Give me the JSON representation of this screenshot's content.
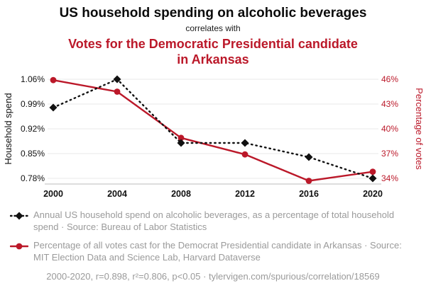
{
  "header": {
    "title": "US household spending on alcoholic beverages",
    "connector": "correlates with",
    "subtitle": "Votes for the Democratic Presidential candidate in Arkansas"
  },
  "colors": {
    "accent_red": "#bb1829",
    "series_black": "#111111",
    "grid": "#e8e8e8",
    "axis_line": "#bbbbbb",
    "legend_gray": "#9a9a9a"
  },
  "chart_data": {
    "type": "line",
    "x": [
      2000,
      2004,
      2008,
      2012,
      2016,
      2020
    ],
    "x_tick_labels": [
      "2000",
      "2004",
      "2008",
      "2012",
      "2016",
      "2020"
    ],
    "left_axis": {
      "label": "Household spend",
      "tick_labels": [
        "1.06%",
        "0.99%",
        "0.92%",
        "0.85%",
        "0.78%"
      ],
      "tick_values": [
        1.06,
        0.99,
        0.92,
        0.85,
        0.78
      ],
      "min": 0.78,
      "max": 1.06
    },
    "right_axis": {
      "label": "Percentage of votes",
      "tick_labels": [
        "46%",
        "43%",
        "40%",
        "37%",
        "34%"
      ],
      "tick_values": [
        46,
        43,
        40,
        37,
        34
      ],
      "min": 34,
      "max": 46
    },
    "series": [
      {
        "name": "Annual US household spend on alcoholic beverages (% of total household spend)",
        "axis": "left",
        "marker": "diamond",
        "style": "dotted",
        "color": "#111111",
        "values": [
          0.98,
          1.06,
          0.88,
          0.88,
          0.84,
          0.78
        ]
      },
      {
        "name": "Percentage of all votes cast for the Democrat Presidential candidate in Arkansas",
        "axis": "right",
        "marker": "circle",
        "style": "solid",
        "color": "#bb1829",
        "values": [
          45.9,
          44.5,
          38.9,
          36.9,
          33.7,
          34.8
        ]
      }
    ],
    "grid": true,
    "legend_position": "bottom"
  },
  "legend": [
    {
      "text": "Annual US household spend on alcoholic beverages, as a percentage of total household spend · Source: Bureau of Labor Statistics"
    },
    {
      "text": "Percentage of all votes cast for the Democrat Presidential candidate in Arkansas · Source: MIT Election Data and Science Lab, Harvard Dataverse"
    }
  ],
  "footer": "2000-2020, r=0.898, r²=0.806, p<0.05 · tylervigen.com/spurious/correlation/18569"
}
